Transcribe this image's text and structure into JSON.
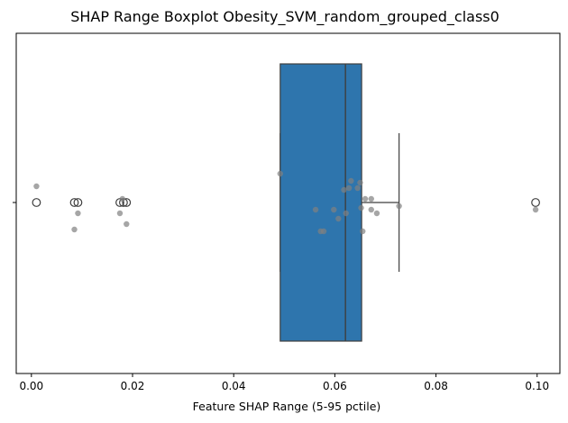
{
  "chart_data": {
    "type": "boxplot",
    "title": "SHAP Range Boxplot Obesity_SVM_random_grouped_class0",
    "xlabel": "Feature SHAP Range (5-95 pctile)",
    "ylabel": "",
    "xlim": [
      -0.003,
      0.1045
    ],
    "x_ticks": [
      0.0,
      0.02,
      0.04,
      0.06,
      0.08,
      0.1
    ],
    "x_tick_labels": [
      "0.00",
      "0.02",
      "0.04",
      "0.06",
      "0.08",
      "0.10"
    ],
    "y_ticks": [
      ""
    ],
    "grid": false,
    "box": {
      "whisker_low": 0.0492,
      "q1": 0.0492,
      "median": 0.0621,
      "q3": 0.0653,
      "whisker_high": 0.0727,
      "color": "#2e75ad",
      "edge_color": "#3f3f3f"
    },
    "outliers": [
      0.001,
      0.0085,
      0.0092,
      0.0175,
      0.0182,
      0.0188,
      0.0997
    ],
    "strip_points": [
      {
        "x": 0.001,
        "jitter": 0.09
      },
      {
        "x": 0.0085,
        "jitter": -0.15
      },
      {
        "x": 0.0092,
        "jitter": -0.06
      },
      {
        "x": 0.0175,
        "jitter": -0.06
      },
      {
        "x": 0.018,
        "jitter": 0.02
      },
      {
        "x": 0.0188,
        "jitter": -0.12
      },
      {
        "x": 0.0492,
        "jitter": 0.16
      },
      {
        "x": 0.0562,
        "jitter": -0.04
      },
      {
        "x": 0.0572,
        "jitter": -0.16
      },
      {
        "x": 0.0578,
        "jitter": -0.16
      },
      {
        "x": 0.0598,
        "jitter": -0.04
      },
      {
        "x": 0.0607,
        "jitter": -0.09
      },
      {
        "x": 0.0618,
        "jitter": 0.07
      },
      {
        "x": 0.0622,
        "jitter": -0.06
      },
      {
        "x": 0.0628,
        "jitter": 0.08
      },
      {
        "x": 0.0632,
        "jitter": 0.12
      },
      {
        "x": 0.0645,
        "jitter": 0.08
      },
      {
        "x": 0.065,
        "jitter": 0.11
      },
      {
        "x": 0.0652,
        "jitter": -0.03
      },
      {
        "x": 0.0655,
        "jitter": -0.16
      },
      {
        "x": 0.066,
        "jitter": 0.02
      },
      {
        "x": 0.0672,
        "jitter": 0.02
      },
      {
        "x": 0.0672,
        "jitter": -0.04
      },
      {
        "x": 0.0683,
        "jitter": -0.06
      },
      {
        "x": 0.0727,
        "jitter": -0.02
      },
      {
        "x": 0.0997,
        "jitter": -0.04
      }
    ],
    "strip_color": "#808080"
  }
}
